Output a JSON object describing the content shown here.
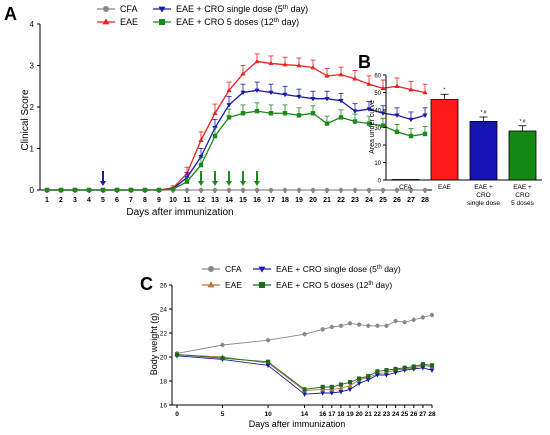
{
  "panels": [
    {
      "letter": "A"
    },
    {
      "letter": "B"
    },
    {
      "letter": "C"
    }
  ],
  "chart_data": [
    {
      "panel": "A",
      "type": "line",
      "xlabel": "Days after immunization",
      "ylabel": "Clinical Score",
      "xlim": [
        0.5,
        28.5
      ],
      "ylim": [
        0,
        4
      ],
      "yticks": [
        "0",
        "1",
        "2",
        "3",
        "4"
      ],
      "x": [
        1,
        2,
        3,
        4,
        5,
        6,
        7,
        8,
        9,
        10,
        11,
        12,
        13,
        14,
        15,
        16,
        17,
        18,
        19,
        20,
        21,
        22,
        23,
        24,
        25,
        26,
        27,
        28
      ],
      "legend": {
        "placement": "top",
        "entries": [
          {
            "text": "CFA",
            "sup": "",
            "after": ""
          },
          {
            "text": "EAE",
            "sup": "",
            "after": ""
          },
          {
            "text": "EAE + CRO single dose (5",
            "sup": "th",
            "after": " day)"
          },
          {
            "text": "EAE + CRO 5 doses (12",
            "sup": "th",
            "after": " day)"
          }
        ]
      },
      "series": [
        {
          "color": "#888888",
          "marker": "circle",
          "values": [
            0,
            0,
            0,
            0,
            0,
            0,
            0,
            0,
            0,
            0,
            0,
            0,
            0,
            0,
            0,
            0,
            0,
            0,
            0,
            0,
            0,
            0,
            0,
            0,
            0,
            0,
            0,
            0
          ],
          "err": [
            0,
            0,
            0,
            0,
            0,
            0,
            0,
            0,
            0,
            0,
            0,
            0,
            0,
            0,
            0,
            0,
            0,
            0,
            0,
            0,
            0,
            0,
            0,
            0,
            0,
            0,
            0,
            0
          ]
        },
        {
          "color": "#e8241f",
          "marker": "triangle-up",
          "values": [
            0,
            0,
            0,
            0,
            0,
            0,
            0,
            0,
            0,
            0.05,
            0.4,
            1.2,
            1.85,
            2.4,
            2.8,
            3.1,
            3.05,
            3.02,
            3.0,
            2.95,
            2.75,
            2.78,
            2.68,
            2.55,
            2.45,
            2.5,
            2.42,
            2.35
          ],
          "err": [
            0,
            0,
            0,
            0,
            0,
            0,
            0,
            0,
            0,
            0.05,
            0.15,
            0.2,
            0.22,
            0.2,
            0.2,
            0.18,
            0.18,
            0.18,
            0.18,
            0.18,
            0.18,
            0.18,
            0.2,
            0.2,
            0.2,
            0.2,
            0.2,
            0.2
          ]
        },
        {
          "color": "#1a1aa8",
          "marker": "triangle-down",
          "values": [
            0,
            0,
            0,
            0,
            0,
            0,
            0,
            0,
            0,
            0.03,
            0.3,
            0.8,
            1.5,
            2.05,
            2.35,
            2.4,
            2.35,
            2.3,
            2.25,
            2.2,
            2.2,
            2.15,
            1.9,
            1.95,
            1.85,
            1.8,
            1.7,
            1.8
          ],
          "err": [
            0,
            0,
            0,
            0,
            0,
            0,
            0,
            0,
            0,
            0.03,
            0.12,
            0.2,
            0.2,
            0.2,
            0.2,
            0.2,
            0.2,
            0.2,
            0.18,
            0.18,
            0.18,
            0.18,
            0.18,
            0.18,
            0.18,
            0.18,
            0.18,
            0.18
          ]
        },
        {
          "color": "#1a8a1a",
          "marker": "square",
          "values": [
            0,
            0,
            0,
            0,
            0,
            0,
            0,
            0,
            0,
            0.02,
            0.2,
            0.6,
            1.3,
            1.75,
            1.85,
            1.9,
            1.85,
            1.85,
            1.8,
            1.85,
            1.6,
            1.75,
            1.65,
            1.6,
            1.55,
            1.4,
            1.3,
            1.35
          ],
          "err": [
            0,
            0,
            0,
            0,
            0,
            0,
            0,
            0,
            0,
            0.02,
            0.1,
            0.18,
            0.2,
            0.2,
            0.2,
            0.2,
            0.2,
            0.2,
            0.18,
            0.18,
            0.18,
            0.18,
            0.18,
            0.18,
            0.18,
            0.18,
            0.18,
            0.18
          ]
        }
      ],
      "dose_arrows": {
        "single_dose_day": [
          5
        ],
        "single_dose_color": "#1a1aa8",
        "five_doses_days": [
          12,
          13,
          14,
          15,
          16
        ],
        "five_doses_color": "#1a8a1a"
      }
    },
    {
      "panel": "B",
      "type": "bar",
      "ylabel": "Area under curve",
      "ylim": [
        0,
        60
      ],
      "yticks": [
        "0",
        "10",
        "20",
        "30",
        "40",
        "50",
        "60"
      ],
      "categories": [
        {
          "lines": [
            "CFA"
          ]
        },
        {
          "lines": [
            "EAE"
          ]
        },
        {
          "lines": [
            "EAE +",
            "CRO",
            "single dose"
          ]
        },
        {
          "lines": [
            "EAE +",
            "CRO",
            "5 doses"
          ]
        }
      ],
      "values": [
        0.3,
        46,
        33.5,
        28
      ],
      "errors": [
        0.2,
        3,
        2.5,
        3
      ],
      "colors": [
        "#ffffff",
        "#ff1a1a",
        "#1414b4",
        "#138813"
      ],
      "annotations": [
        "",
        "*",
        "* #",
        "* #"
      ]
    },
    {
      "panel": "C",
      "type": "line",
      "xlabel": "Days after immunization",
      "ylabel": "Body weight (g)",
      "xlim": [
        0,
        28
      ],
      "ylim": [
        16,
        26
      ],
      "xticks": [
        0,
        5,
        10,
        14,
        16,
        17,
        18,
        19,
        20,
        21,
        22,
        23,
        24,
        25,
        26,
        27,
        28
      ],
      "yticks": [
        "16",
        "18",
        "20",
        "22",
        "24",
        "26"
      ],
      "legend": {
        "placement": "top",
        "entries": [
          {
            "text": "CFA",
            "sup": "",
            "after": ""
          },
          {
            "text": "EAE",
            "sup": "",
            "after": ""
          },
          {
            "text": "EAE + CRO single dose (5",
            "sup": "th",
            "after": " day)"
          },
          {
            "text": "EAE + CRO 5 doses (12",
            "sup": "th",
            "after": " day)"
          }
        ]
      },
      "x": [
        0,
        5,
        10,
        14,
        16,
        17,
        18,
        19,
        20,
        21,
        22,
        23,
        24,
        25,
        26,
        27,
        28
      ],
      "series": [
        {
          "color": "#888888",
          "marker": "circle",
          "values": [
            20.3,
            21.0,
            21.4,
            21.9,
            22.3,
            22.5,
            22.6,
            22.8,
            22.7,
            22.6,
            22.6,
            22.6,
            23.0,
            22.9,
            23.1,
            23.3,
            23.5
          ]
        },
        {
          "color": "#b07840",
          "marker": "triangle-up",
          "values": [
            20.2,
            20.0,
            19.5,
            17.2,
            17.3,
            17.3,
            17.4,
            17.6,
            18.1,
            18.3,
            18.6,
            18.7,
            18.9,
            19.0,
            19.1,
            19.3,
            19.2
          ]
        },
        {
          "color": "#1a1aa8",
          "marker": "triangle-down",
          "values": [
            20.1,
            19.8,
            19.3,
            16.9,
            17.0,
            17.0,
            17.1,
            17.3,
            17.8,
            18.1,
            18.5,
            18.5,
            18.7,
            18.9,
            19.0,
            19.1,
            18.9
          ]
        },
        {
          "color": "#1a6a1a",
          "marker": "square",
          "values": [
            20.2,
            19.9,
            19.6,
            17.3,
            17.5,
            17.5,
            17.7,
            17.9,
            18.2,
            18.4,
            18.8,
            18.9,
            19.0,
            19.1,
            19.2,
            19.4,
            19.3
          ]
        }
      ]
    }
  ]
}
